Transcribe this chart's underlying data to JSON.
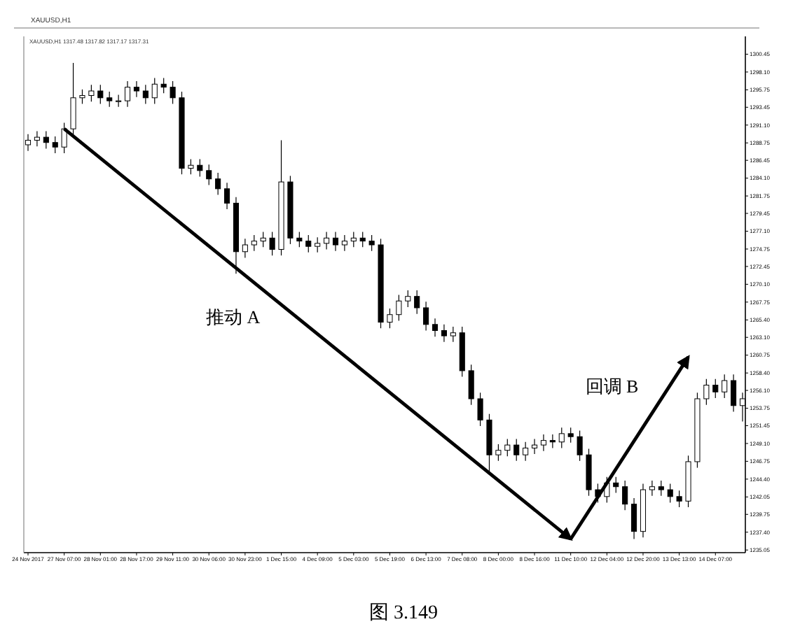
{
  "chart_data": {
    "type": "candlestick",
    "title": "XAUUSD,H1",
    "subtitle": "XAUUSD,H1 1317.48 1317.82 1317.17 1317.31",
    "annotations": [
      "推动 A",
      "回调 B",
      "图 3.149"
    ],
    "categories": [
      "24 Nov 2017",
      null,
      null,
      null,
      "27 Nov 07:00",
      null,
      null,
      null,
      "28 Nov 01:00",
      null,
      null,
      null,
      "28 Nov 17:00",
      null,
      null,
      null,
      "29 Nov 11:00",
      null,
      null,
      null,
      "30 Nov 06:00",
      null,
      null,
      null,
      "30 Nov 23:00",
      null,
      null,
      null,
      "1 Dec 15:00",
      null,
      null,
      null,
      "4 Dec 09:00",
      null,
      null,
      null,
      "5 Dec 03:00",
      null,
      null,
      null,
      "5 Dec 19:00",
      null,
      null,
      null,
      "6 Dec 13:00",
      null,
      null,
      null,
      "7 Dec 08:00",
      null,
      null,
      null,
      "8 Dec 00:00",
      null,
      null,
      null,
      "8 Dec 16:00",
      null,
      null,
      null,
      "11 Dec 10:00",
      null,
      null,
      null,
      "12 Dec 04:00",
      null,
      null,
      null,
      "12 Dec 20:00",
      null,
      null,
      null,
      "13 Dec 13:00",
      null,
      null,
      null,
      "14 Dec 07:00",
      null,
      null,
      null
    ],
    "ohlc": [
      [
        1288.5,
        1289.9,
        1287.7,
        1289.1
      ],
      [
        1289.1,
        1290.3,
        1288.3,
        1289.5
      ],
      [
        1289.5,
        1290.3,
        1288.0,
        1288.8
      ],
      [
        1288.8,
        1289.6,
        1287.4,
        1288.2
      ],
      [
        1288.2,
        1291.4,
        1287.4,
        1290.6
      ],
      [
        1290.6,
        1299.3,
        1289.8,
        1294.7
      ],
      [
        1294.7,
        1295.8,
        1293.9,
        1295.0
      ],
      [
        1295.0,
        1296.4,
        1294.2,
        1295.6
      ],
      [
        1295.6,
        1296.4,
        1293.9,
        1294.7
      ],
      [
        1294.7,
        1295.5,
        1293.5,
        1294.3
      ],
      [
        1294.3,
        1295.1,
        1293.5,
        1294.3
      ],
      [
        1294.3,
        1296.9,
        1293.5,
        1296.1
      ],
      [
        1296.1,
        1296.9,
        1294.8,
        1295.6
      ],
      [
        1295.6,
        1296.4,
        1293.9,
        1294.7
      ],
      [
        1294.7,
        1297.3,
        1293.9,
        1296.5
      ],
      [
        1296.5,
        1297.3,
        1295.3,
        1296.1
      ],
      [
        1296.1,
        1296.9,
        1293.9,
        1294.7
      ],
      [
        1294.7,
        1295.5,
        1284.6,
        1285.4
      ],
      [
        1285.4,
        1286.6,
        1284.6,
        1285.8
      ],
      [
        1285.8,
        1286.6,
        1284.3,
        1285.1
      ],
      [
        1285.1,
        1285.9,
        1283.2,
        1284.0
      ],
      [
        1284.0,
        1284.8,
        1281.9,
        1282.7
      ],
      [
        1282.7,
        1283.5,
        1280.0,
        1280.8
      ],
      [
        1280.8,
        1281.6,
        1271.5,
        1274.4
      ],
      [
        1274.4,
        1276.1,
        1273.6,
        1275.3
      ],
      [
        1275.3,
        1276.6,
        1274.5,
        1275.8
      ],
      [
        1275.8,
        1277.0,
        1275.0,
        1276.2
      ],
      [
        1276.2,
        1277.0,
        1273.9,
        1274.7
      ],
      [
        1274.7,
        1289.1,
        1273.9,
        1283.6
      ],
      [
        1283.6,
        1284.4,
        1275.4,
        1276.2
      ],
      [
        1276.2,
        1277.0,
        1275.0,
        1275.8
      ],
      [
        1275.8,
        1276.6,
        1274.3,
        1275.1
      ],
      [
        1275.1,
        1276.3,
        1274.3,
        1275.5
      ],
      [
        1275.5,
        1277.0,
        1274.7,
        1276.2
      ],
      [
        1276.2,
        1277.0,
        1274.5,
        1275.3
      ],
      [
        1275.3,
        1276.6,
        1274.5,
        1275.8
      ],
      [
        1275.8,
        1277.0,
        1275.0,
        1276.2
      ],
      [
        1276.2,
        1277.0,
        1275.0,
        1275.8
      ],
      [
        1275.8,
        1276.6,
        1274.5,
        1275.3
      ],
      [
        1275.3,
        1276.1,
        1264.3,
        1265.1
      ],
      [
        1265.1,
        1266.9,
        1264.3,
        1266.1
      ],
      [
        1266.1,
        1268.7,
        1265.3,
        1267.9
      ],
      [
        1267.9,
        1269.3,
        1267.1,
        1268.5
      ],
      [
        1268.5,
        1269.3,
        1266.2,
        1267.0
      ],
      [
        1267.0,
        1267.8,
        1264.0,
        1264.8
      ],
      [
        1264.8,
        1265.6,
        1263.2,
        1264.0
      ],
      [
        1264.0,
        1264.8,
        1262.5,
        1263.3
      ],
      [
        1263.3,
        1264.5,
        1262.5,
        1263.7
      ],
      [
        1263.7,
        1264.5,
        1257.9,
        1258.7
      ],
      [
        1258.7,
        1259.5,
        1254.2,
        1255.0
      ],
      [
        1255.0,
        1255.8,
        1251.4,
        1252.2
      ],
      [
        1252.2,
        1253.0,
        1245.0,
        1247.6
      ],
      [
        1247.6,
        1249.0,
        1246.8,
        1248.2
      ],
      [
        1248.2,
        1249.7,
        1247.4,
        1248.9
      ],
      [
        1248.9,
        1249.7,
        1246.8,
        1247.6
      ],
      [
        1247.6,
        1249.3,
        1246.8,
        1248.5
      ],
      [
        1248.5,
        1249.7,
        1247.7,
        1248.9
      ],
      [
        1248.9,
        1250.3,
        1248.1,
        1249.5
      ],
      [
        1249.5,
        1250.3,
        1248.5,
        1249.3
      ],
      [
        1249.3,
        1251.2,
        1248.5,
        1250.4
      ],
      [
        1250.4,
        1251.2,
        1249.2,
        1250.0
      ],
      [
        1250.0,
        1250.8,
        1246.8,
        1247.6
      ],
      [
        1247.6,
        1248.4,
        1242.2,
        1243.0
      ],
      [
        1243.0,
        1243.8,
        1241.3,
        1242.1
      ],
      [
        1242.1,
        1244.7,
        1241.3,
        1243.9
      ],
      [
        1243.9,
        1244.7,
        1242.6,
        1243.4
      ],
      [
        1243.4,
        1244.2,
        1240.3,
        1241.1
      ],
      [
        1241.1,
        1241.9,
        1236.5,
        1237.5
      ],
      [
        1237.5,
        1243.8,
        1236.7,
        1243.0
      ],
      [
        1243.0,
        1244.2,
        1242.2,
        1243.4
      ],
      [
        1243.4,
        1244.2,
        1242.2,
        1243.0
      ],
      [
        1243.0,
        1243.8,
        1241.3,
        1242.1
      ],
      [
        1242.1,
        1242.9,
        1240.7,
        1241.5
      ],
      [
        1241.5,
        1247.5,
        1240.7,
        1246.7
      ],
      [
        1246.7,
        1255.8,
        1245.9,
        1255.0
      ],
      [
        1255.0,
        1257.6,
        1254.2,
        1256.8
      ],
      [
        1256.8,
        1257.6,
        1255.1,
        1255.9
      ],
      [
        1255.9,
        1258.2,
        1255.1,
        1257.4
      ],
      [
        1257.4,
        1258.2,
        1253.3,
        1254.1
      ],
      [
        1254.1,
        1255.8,
        1252.0,
        1255.0
      ]
    ],
    "series": [
      {
        "type": "line",
        "color": "#000000",
        "values": [
          null,
          null,
          null,
          null,
          1290.6,
          null,
          null,
          null,
          null,
          null,
          null,
          null,
          null,
          null,
          null,
          null,
          null,
          null,
          null,
          null,
          null,
          null,
          null,
          null,
          null,
          null,
          null,
          null,
          null,
          null,
          null,
          null,
          null,
          null,
          null,
          null,
          null,
          null,
          null,
          null,
          null,
          null,
          null,
          null,
          null,
          null,
          null,
          null,
          null,
          null,
          null,
          null,
          null,
          null,
          null,
          null,
          null,
          null,
          null,
          null,
          1236.5,
          null,
          null,
          null,
          null,
          null,
          null,
          null,
          null,
          null,
          null,
          null,
          null,
          null,
          null,
          null,
          null,
          null,
          null,
          null
        ]
      },
      {
        "type": "line",
        "color": "#000000",
        "values": [
          null,
          null,
          null,
          null,
          null,
          null,
          null,
          null,
          null,
          null,
          null,
          null,
          null,
          null,
          null,
          null,
          null,
          null,
          null,
          null,
          null,
          null,
          null,
          null,
          null,
          null,
          null,
          null,
          null,
          null,
          null,
          null,
          null,
          null,
          null,
          null,
          null,
          null,
          null,
          null,
          null,
          null,
          null,
          null,
          null,
          null,
          null,
          null,
          null,
          null,
          null,
          null,
          null,
          null,
          null,
          null,
          null,
          null,
          null,
          null,
          1236.5,
          null,
          null,
          null,
          null,
          null,
          null,
          null,
          null,
          null,
          null,
          null,
          null,
          1260.5,
          null,
          null,
          null,
          null,
          null,
          null
        ]
      }
    ],
    "ylim": [
      1234.7,
      1302.8
    ],
    "yticks": [
      {
        "value": 1235.05,
        "label": "1235.05"
      },
      {
        "value": 1237.4,
        "label": "1237.40"
      },
      {
        "value": 1239.75,
        "label": "1239.75"
      },
      {
        "value": 1242.05,
        "label": "1242.05"
      },
      {
        "value": 1244.4,
        "label": "1244.40"
      },
      {
        "value": 1246.75,
        "label": "1246.75"
      },
      {
        "value": 1249.1,
        "label": "1249.10"
      },
      {
        "value": 1251.45,
        "label": "1251.45"
      },
      {
        "value": 1253.75,
        "label": "1253.75"
      },
      {
        "value": 1256.1,
        "label": "1256.10"
      },
      {
        "value": 1258.4,
        "label": "1258.40"
      },
      {
        "value": 1260.75,
        "label": "1260.75"
      },
      {
        "value": 1263.1,
        "label": "1263.10"
      },
      {
        "value": 1265.4,
        "label": "1265.40"
      },
      {
        "value": 1267.75,
        "label": "1267.75"
      },
      {
        "value": 1270.1,
        "label": "1270.10"
      },
      {
        "value": 1272.45,
        "label": "1272.45"
      },
      {
        "value": 1274.75,
        "label": "1274.75"
      },
      {
        "value": 1277.1,
        "label": "1277.10"
      },
      {
        "value": 1279.45,
        "label": "1279.45"
      },
      {
        "value": 1281.75,
        "label": "1281.75"
      },
      {
        "value": 1284.1,
        "label": "1284.10"
      },
      {
        "value": 1286.45,
        "label": "1286.45"
      },
      {
        "value": 1288.75,
        "label": "1288.75"
      },
      {
        "value": 1291.1,
        "label": "1291.10"
      },
      {
        "value": 1293.45,
        "label": "1293.45"
      },
      {
        "value": 1295.75,
        "label": "1295.75"
      },
      {
        "value": 1298.1,
        "label": "1298.10"
      },
      {
        "value": 1300.45,
        "label": "1300.45"
      }
    ],
    "grid": false
  }
}
